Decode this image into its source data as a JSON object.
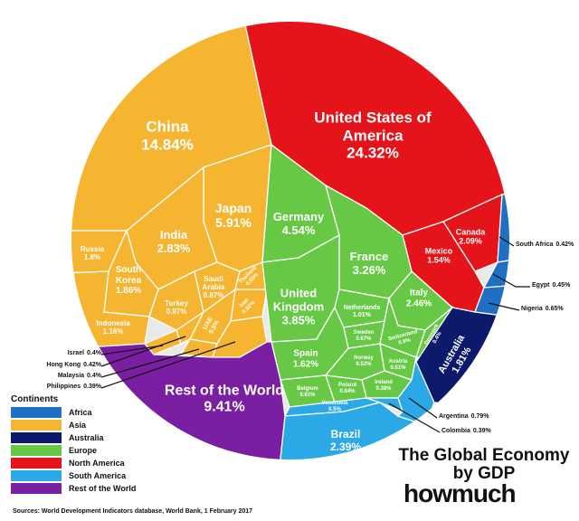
{
  "chart_data": {
    "type": "voronoi",
    "title": "The Global Economy by GDP",
    "brand": "howmuch",
    "source": "Sources: World Development Indicators database, World Bank, 1 February 2017",
    "legend_title": "Continents",
    "groups": [
      {
        "name": "Africa",
        "color": "#1f6fc5"
      },
      {
        "name": "Asia",
        "color": "#f5b531"
      },
      {
        "name": "Australia",
        "color": "#0d1a6b"
      },
      {
        "name": "Europe",
        "color": "#66c845"
      },
      {
        "name": "North America",
        "color": "#e5141b"
      },
      {
        "name": "South America",
        "color": "#2aa9e6"
      },
      {
        "name": "Rest of the World",
        "color": "#7b1fa2"
      }
    ],
    "categories": [
      "United States of America",
      "Canada",
      "Mexico",
      "China",
      "Japan",
      "India",
      "Russia",
      "South Korea",
      "Indonesia",
      "Turkey",
      "Saudi Arabia",
      "Thailand",
      "Iran",
      "UAE",
      "Israel",
      "Hong Kong",
      "Malaysia",
      "Philippines",
      "Germany",
      "France",
      "United Kingdom",
      "Italy",
      "Spain",
      "Netherlands",
      "Sweden",
      "Switzerland",
      "Denmark",
      "Norway",
      "Austria",
      "Ireland",
      "Poland",
      "Belgium",
      "Venezuela",
      "Brazil",
      "Argentina",
      "Colombia",
      "South Africa",
      "Egypt",
      "Nigeria",
      "Australia",
      "Rest of the World"
    ],
    "continents": [
      "North America",
      "North America",
      "North America",
      "Asia",
      "Asia",
      "Asia",
      "Asia",
      "Asia",
      "Asia",
      "Asia",
      "Asia",
      "Asia",
      "Asia",
      "Asia",
      "Asia",
      "Asia",
      "Asia",
      "Asia",
      "Europe",
      "Europe",
      "Europe",
      "Europe",
      "Europe",
      "Europe",
      "Europe",
      "Europe",
      "Europe",
      "Europe",
      "Europe",
      "Europe",
      "Europe",
      "Europe",
      "South America",
      "South America",
      "South America",
      "South America",
      "Africa",
      "Africa",
      "Africa",
      "Australia",
      "Rest of the World"
    ],
    "values": [
      24.32,
      2.09,
      1.54,
      14.84,
      5.91,
      2.83,
      1.8,
      1.86,
      1.16,
      0.97,
      0.87,
      0.55,
      0.52,
      0.5,
      0.4,
      0.42,
      0.4,
      0.39,
      4.54,
      3.26,
      3.85,
      2.46,
      1.62,
      1.01,
      0.67,
      0.9,
      0.4,
      0.52,
      0.51,
      0.38,
      0.64,
      0.61,
      0.5,
      2.39,
      0.79,
      0.39,
      0.42,
      0.45,
      0.65,
      1.81,
      9.41
    ],
    "value_labels": [
      "24.32%",
      "2.09%",
      "1.54%",
      "14.84%",
      "5.91%",
      "2.83%",
      "1.8%",
      "1.86%",
      "1.16%",
      "0.97%",
      "0.87%",
      "0.55%",
      "0.52%",
      "0.5%",
      "0.4%",
      "0.42%",
      "0.4%",
      "0.39%",
      "4.54%",
      "3.26%",
      "3.85%",
      "2.46%",
      "1.62%",
      "1.01%",
      "0.67%",
      "0.9%",
      "0.4%",
      "0.52%",
      "0.51%",
      "0.38%",
      "0.64%",
      "0.61%",
      "0.5%",
      "2.39%",
      "0.79%",
      "0.39%",
      "0.42%",
      "0.45%",
      "0.65%",
      "1.81%",
      "9.41%"
    ]
  }
}
